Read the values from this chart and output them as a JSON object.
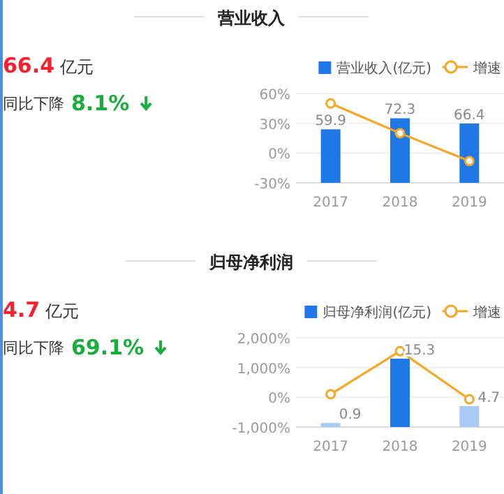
{
  "chart_data": [
    {
      "type": "other",
      "annotations": [
        "66.4",
        "亿元",
        "同比下降",
        "8.1%"
      ]
    },
    {
      "type": "bar",
      "title": "营业收入",
      "categories": [
        "2017",
        "2018",
        "2019"
      ],
      "legend": "top right",
      "grid": "y",
      "ylim": [
        -30,
        60
      ],
      "yticks": [
        {
          "value": -30,
          "label": "-30%"
        },
        {
          "value": 0,
          "label": "0%"
        },
        {
          "value": 30,
          "label": "30%"
        },
        {
          "value": 60,
          "label": "60%"
        }
      ],
      "y2lim": [
        0,
        100
      ],
      "series": [
        {
          "name": "营业收入(亿元)",
          "type": "bar",
          "axis": "y2",
          "color": "#1f78e6",
          "values": [
            59.9,
            72.3,
            66.4
          ],
          "value_labels": [
            "59.9",
            "72.3",
            "66.4"
          ]
        },
        {
          "name": "增速",
          "type": "line",
          "color": "#f5a623",
          "marker": "circle",
          "values": [
            50,
            20,
            -8.1
          ]
        }
      ]
    },
    {
      "type": "other",
      "annotations": [
        "4.7",
        "亿元",
        "同比下降",
        "69.1%"
      ]
    },
    {
      "type": "bar",
      "title": "归母净利润",
      "categories": [
        "2017",
        "2018",
        "2019"
      ],
      "legend": "top right",
      "grid": "y",
      "ylim": [
        -1000,
        2000
      ],
      "yticks": [
        {
          "value": -1000,
          "label": "-1,000%"
        },
        {
          "value": 0,
          "label": "0%"
        },
        {
          "value": 1000,
          "label": "1,000%"
        },
        {
          "value": 2000,
          "label": "2,000%"
        }
      ],
      "y2lim": [
        0,
        20
      ],
      "series": [
        {
          "name": "归母净利润(亿元)",
          "type": "bar",
          "axis": "y2",
          "color": "#1f78e6",
          "colors": [
            "#a9cbf5",
            "#1f78e6",
            "#a9cbf5"
          ],
          "values": [
            0.9,
            15.3,
            4.7
          ],
          "value_labels": [
            "0.9",
            "15.3",
            "4.7"
          ]
        },
        {
          "name": "增速",
          "type": "line",
          "color": "#f5a623",
          "marker": "circle",
          "values": [
            100,
            1550,
            -69.1
          ]
        }
      ]
    }
  ]
}
